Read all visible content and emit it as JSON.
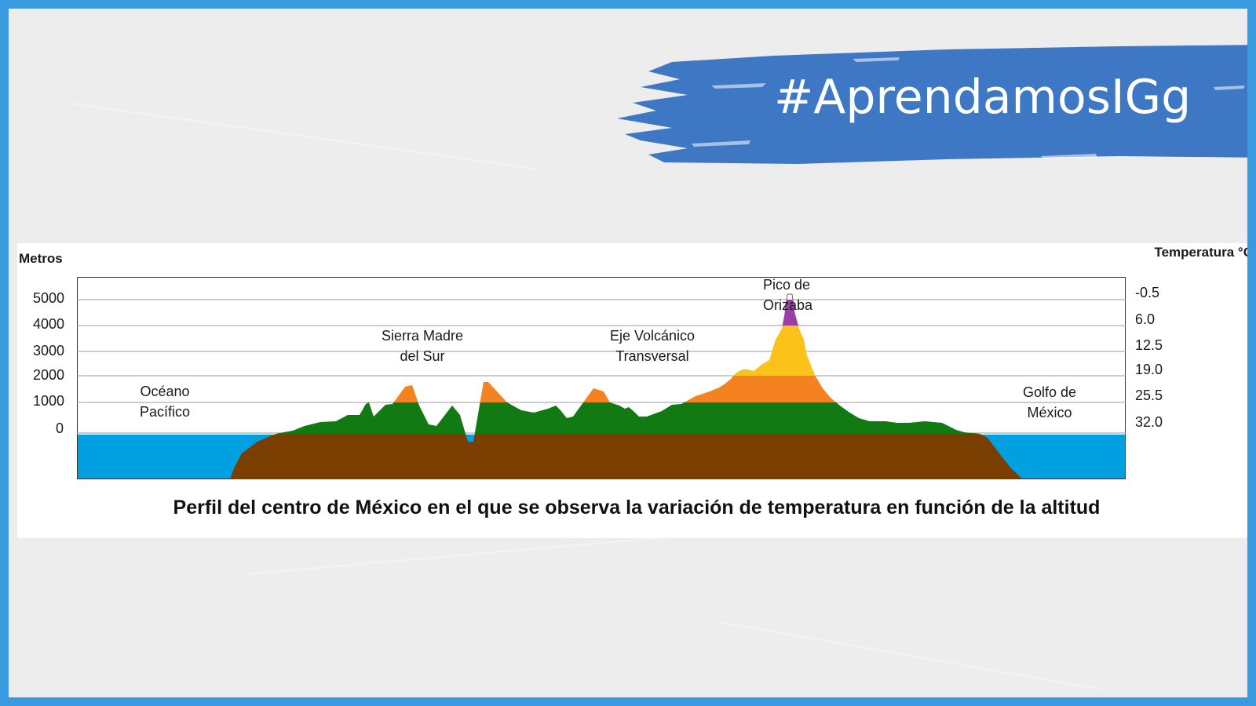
{
  "banner": {
    "hashtag": "#AprendamosIGg"
  },
  "figure": {
    "left_axis_title": "Metros",
    "right_axis_title": "Temperatura °C",
    "elevation_ticks": [
      "5000",
      "4000",
      "3000",
      "2000",
      "1000",
      "0"
    ],
    "temperature_ticks": [
      "-0.5",
      "6.0",
      "12.5",
      "19.0",
      "25.5",
      "32.0"
    ],
    "labels": {
      "pacific_line1": "Océano",
      "pacific_line2": "Pacífico",
      "sierra_line1": "Sierra Madre",
      "sierra_line2": "del Sur",
      "eje_line1": "Eje Volcánico",
      "eje_line2": "Transversal",
      "pico_line1": "Pico de",
      "pico_line2": "Orizaba",
      "golfo_line1": "Golfo de",
      "golfo_line2": "México"
    },
    "caption": "Perfil del centro de México en el que se observa la variación de temperatura en función de la altitud"
  },
  "colors": {
    "frame": "#3a9ae0",
    "brush": "#3e78c4",
    "water": "#00a0e0",
    "soil": "#7a3e00",
    "band_0_1000": "#117a12",
    "band_1000_2000": "#f58220",
    "band_2000_4000": "#fbc31a",
    "band_4000_5000": "#9b3fa8",
    "band_above_5000": "#ffffff"
  }
}
